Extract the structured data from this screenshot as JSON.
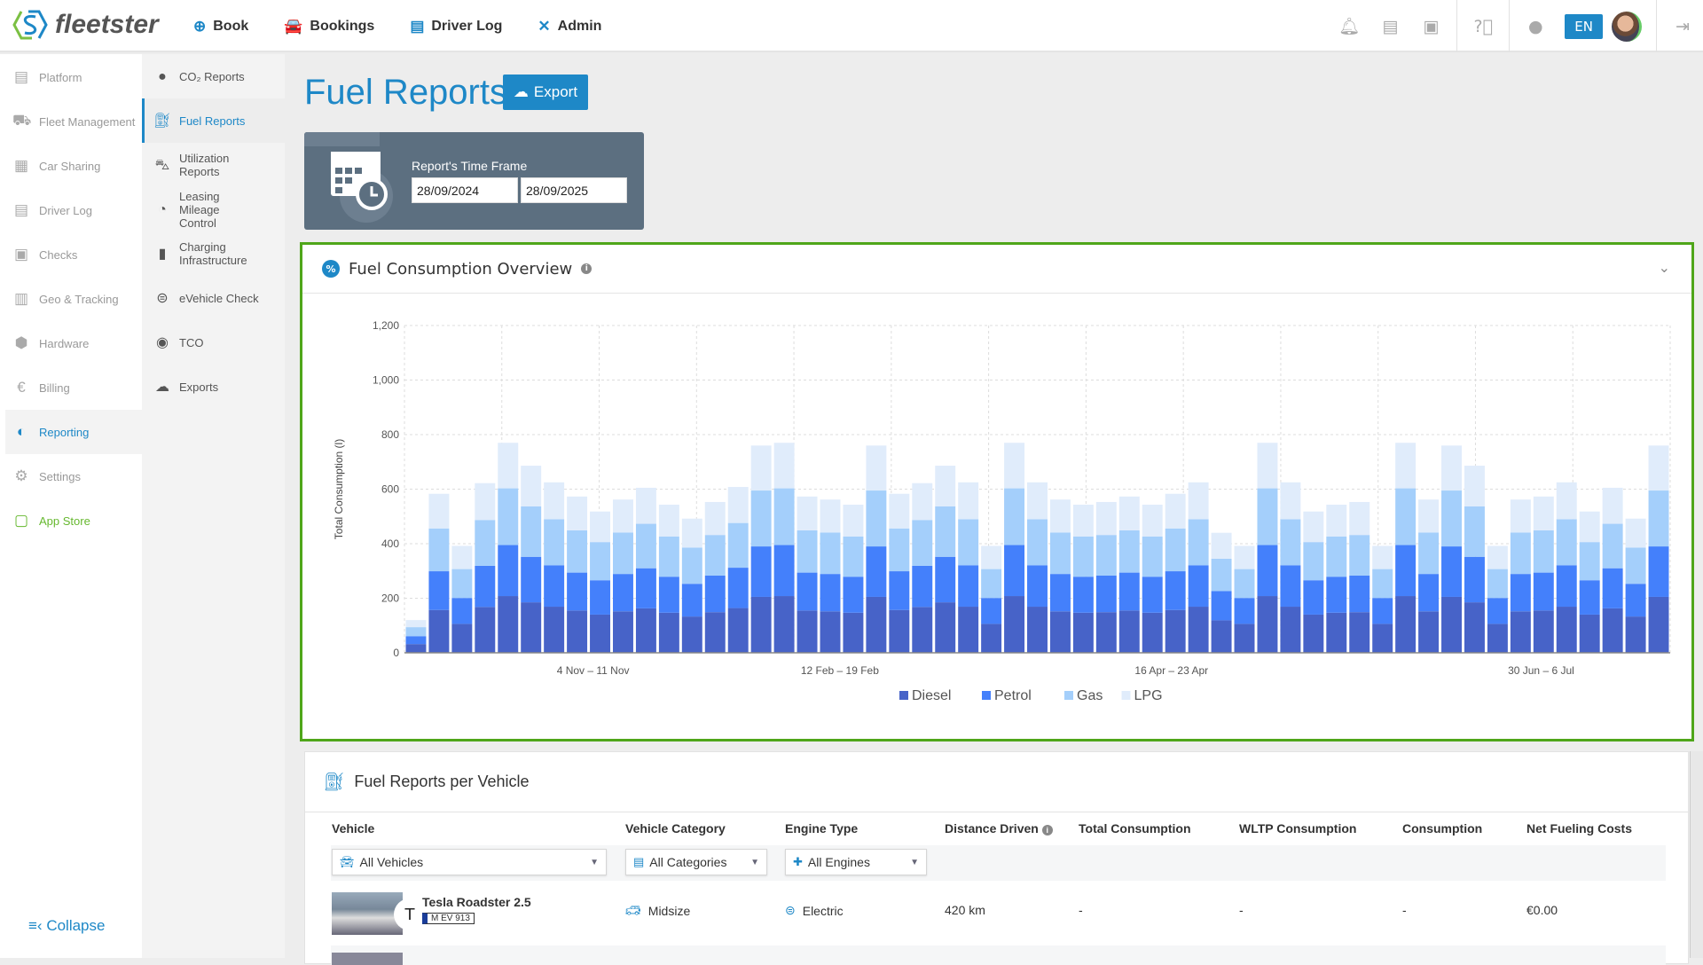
{
  "app": {
    "logo_text": "fleetster"
  },
  "nav": [
    {
      "label": "Book",
      "icon": "plus-circle-icon"
    },
    {
      "label": "Bookings",
      "icon": "car-calendar-icon"
    },
    {
      "label": "Driver Log",
      "icon": "clipboard-icon"
    },
    {
      "label": "Admin",
      "icon": "tools-icon"
    }
  ],
  "topright": {
    "lang": "EN"
  },
  "sidebar": {
    "items": [
      {
        "label": "Platform",
        "icon": "clipboard-icon"
      },
      {
        "label": "Fleet Management",
        "icon": "cars-icon"
      },
      {
        "label": "Car Sharing",
        "icon": "car-sharing-icon"
      },
      {
        "label": "Driver Log",
        "icon": "log-icon"
      },
      {
        "label": "Checks",
        "icon": "id-card-icon"
      },
      {
        "label": "Geo & Tracking",
        "icon": "map-icon"
      },
      {
        "label": "Hardware",
        "icon": "hardware-icon"
      },
      {
        "label": "Billing",
        "icon": "euro-icon"
      },
      {
        "label": "Reporting",
        "icon": "pie-icon",
        "active": true
      },
      {
        "label": "Settings",
        "icon": "gear-icon"
      },
      {
        "label": "App Store",
        "icon": "app-store-icon"
      }
    ],
    "collapse": "Collapse"
  },
  "subnav": {
    "items": [
      {
        "label": "CO₂ Reports",
        "icon": "co2-icon"
      },
      {
        "label": "Fuel Reports",
        "icon": "fuel-pump-icon",
        "active": true
      },
      {
        "label": "Utilization Reports",
        "icon": "utilization-icon"
      },
      {
        "label": "Leasing Mileage Control",
        "icon": "gauge-icon"
      },
      {
        "label": "Charging Infrastructure",
        "icon": "charging-station-icon"
      },
      {
        "label": "eVehicle Check",
        "icon": "plug-icon"
      },
      {
        "label": "TCO",
        "icon": "coins-icon"
      },
      {
        "label": "Exports",
        "icon": "cloud-download-icon"
      }
    ]
  },
  "page": {
    "title": "Fuel Reports",
    "export_label": "Export"
  },
  "timeframe": {
    "label": "Report's Time Frame",
    "from": "28/09/2024",
    "to": "28/09/2025"
  },
  "overview": {
    "title": "Fuel Consumption Overview"
  },
  "chart_data": {
    "type": "bar",
    "stacked": true,
    "ylabel": "Total Consumption (l)",
    "ylim": [
      0,
      1200
    ],
    "yticks": [
      0,
      200,
      400,
      600,
      800,
      1000,
      1200
    ],
    "x_tick_labels": [
      "4 Nov – 11 Nov",
      "12 Feb – 19 Feb",
      "16 Apr – 23 Apr",
      "30 Jun – 6 Jul"
    ],
    "grid": true,
    "legend": "bottom",
    "series": [
      {
        "name": "Diesel",
        "color": "#4763c8",
        "values": [
          32,
          157,
          106,
          168,
          208,
          185,
          169,
          155,
          140,
          152,
          163,
          147,
          133,
          149,
          164,
          205,
          208,
          155,
          152,
          147,
          205,
          157,
          168,
          185,
          169,
          106,
          208,
          169,
          152,
          147,
          149,
          155,
          147,
          157,
          169,
          119,
          106,
          208,
          169,
          140,
          147,
          149,
          106,
          208,
          152,
          205,
          185,
          106,
          152,
          155,
          169,
          140,
          163,
          133,
          205
        ]
      },
      {
        "name": "Petrol",
        "color": "#4480fb",
        "values": [
          29,
          142,
          95,
          151,
          187,
          167,
          152,
          139,
          126,
          137,
          147,
          132,
          120,
          134,
          148,
          185,
          187,
          139,
          137,
          132,
          185,
          142,
          151,
          167,
          152,
          95,
          187,
          152,
          137,
          132,
          134,
          139,
          132,
          142,
          152,
          107,
          95,
          187,
          152,
          126,
          132,
          134,
          95,
          187,
          137,
          185,
          167,
          95,
          137,
          139,
          152,
          126,
          147,
          120,
          185
        ]
      },
      {
        "name": "Gas",
        "color": "#a4cffb",
        "values": [
          33,
          157,
          106,
          168,
          208,
          185,
          169,
          155,
          140,
          152,
          163,
          147,
          133,
          149,
          164,
          205,
          208,
          155,
          152,
          147,
          205,
          157,
          168,
          185,
          169,
          106,
          208,
          169,
          152,
          147,
          149,
          155,
          147,
          157,
          169,
          119,
          106,
          208,
          169,
          140,
          147,
          149,
          106,
          208,
          152,
          205,
          185,
          106,
          152,
          155,
          169,
          140,
          163,
          133,
          205
        ]
      },
      {
        "name": "LPG",
        "color": "#e0ecfb",
        "values": [
          26,
          127,
          85,
          135,
          167,
          149,
          135,
          124,
          112,
          121,
          132,
          117,
          106,
          121,
          132,
          165,
          167,
          124,
          121,
          117,
          165,
          127,
          135,
          149,
          135,
          85,
          167,
          135,
          121,
          117,
          121,
          124,
          117,
          127,
          135,
          95,
          85,
          167,
          135,
          112,
          117,
          121,
          85,
          167,
          121,
          165,
          149,
          85,
          121,
          124,
          135,
          112,
          132,
          106,
          165
        ]
      }
    ]
  },
  "vehicles": {
    "title": "Fuel Reports per Vehicle",
    "columns": [
      "Vehicle",
      "Vehicle Category",
      "Engine Type",
      "Distance Driven",
      "Total Consumption",
      "WLTP Consumption",
      "Consumption",
      "Net Fueling Costs"
    ],
    "filters": {
      "vehicle": "All Vehicles",
      "category": "All Categories",
      "engine": "All Engines"
    },
    "rows": [
      {
        "name": "Tesla Roadster 2.5",
        "plate": "M EV 913",
        "category": "Midsize",
        "engine": "Electric",
        "distance": "420 km",
        "total": "-",
        "wltp": "-",
        "consumption": "-",
        "cost": "€0.00"
      }
    ]
  }
}
